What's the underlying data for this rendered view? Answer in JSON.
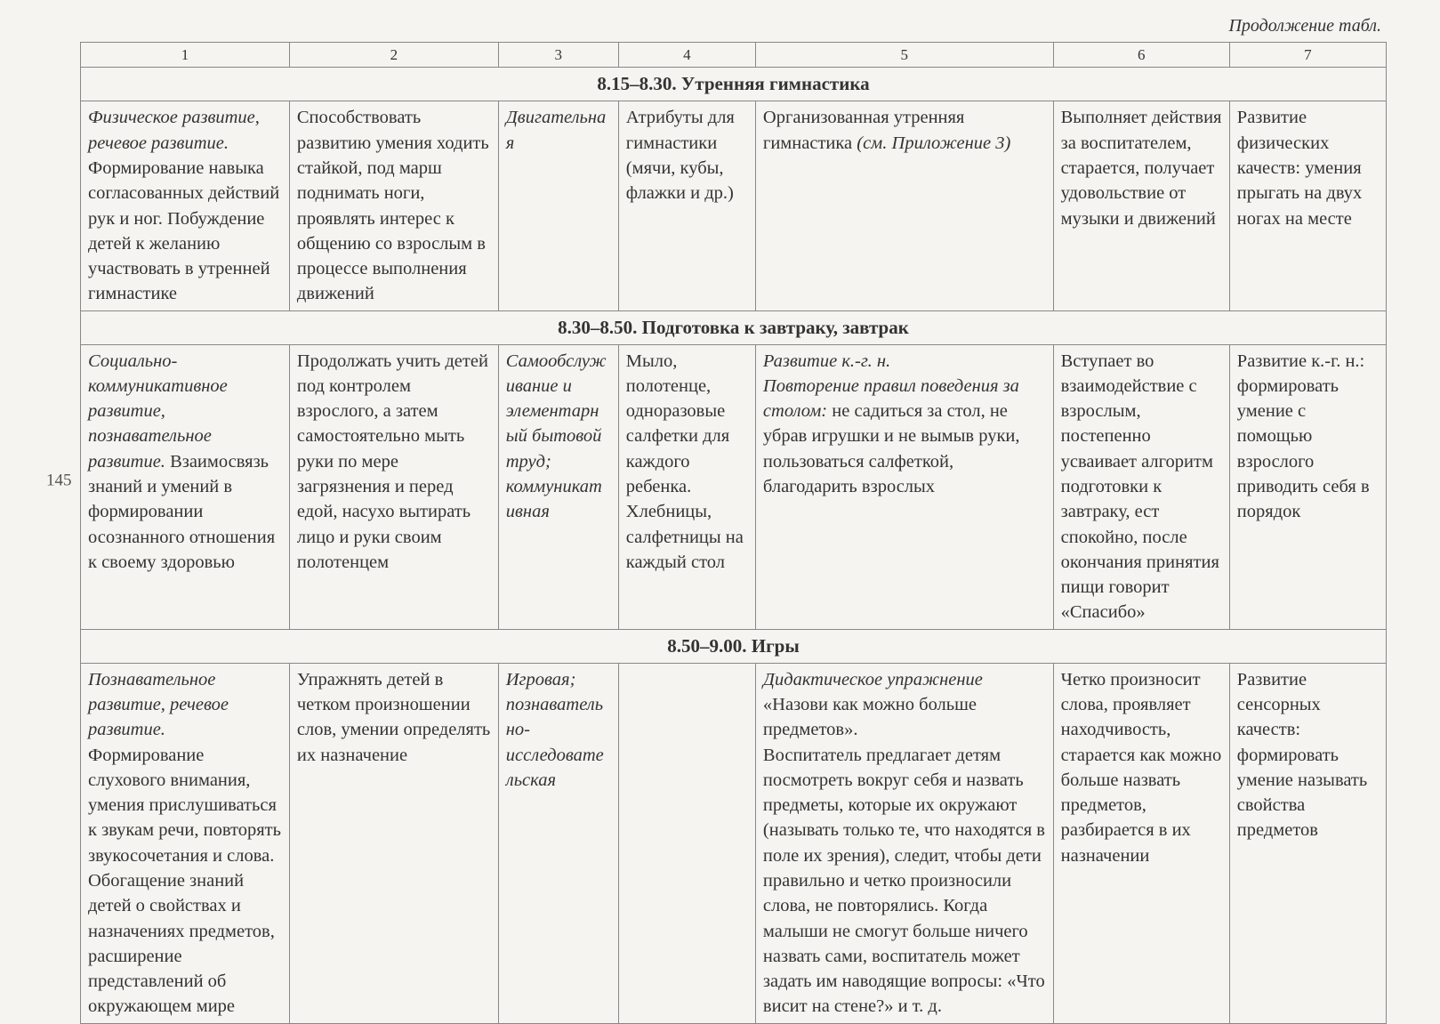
{
  "continuation": "Продолжение табл.",
  "page_number": "145",
  "colors": {
    "background": "#f5f4f0",
    "border": "#888888",
    "text": "#333333"
  },
  "typography": {
    "body_font": "Times New Roman",
    "body_size_pt": 15,
    "header_size_pt": 16
  },
  "columns": {
    "widths_pct": [
      16,
      16,
      9.2,
      10.5,
      22.8,
      13.5,
      12
    ],
    "numbers": [
      "1",
      "2",
      "3",
      "4",
      "5",
      "6",
      "7"
    ]
  },
  "sections": [
    {
      "title": "8.15–8.30. Утренняя гимнастика",
      "rows": [
        {
          "c1_italic": "Физическое развитие, речевое развитие.",
          "c1_rest": " Формирование навыка согласованных действий рук и ног. Побуждение детей к желанию участвовать в утренней гимнастике",
          "c2": "Способствовать развитию умения ходить стайкой, под марш поднимать ноги, проявлять интерес к общению со взрослым в процессе выполнения движений",
          "c3_italic": "Двигательная",
          "c3_rest": "",
          "c4": "Атрибуты для гимнастики (мячи, кубы, флажки и др.)",
          "c5_pre": "Организованная утренняя гимнастика ",
          "c5_italic": "(см. Приложение 3)",
          "c5_rest": "",
          "c6": "Выполняет действия за воспитателем, старается, получает удовольствие от музыки и движений",
          "c7": "Развитие физических качеств: умения прыгать на двух ногах на месте"
        }
      ]
    },
    {
      "title": "8.30–8.50. Подготовка к завтраку, завтрак",
      "rows": [
        {
          "c1_italic": "Социально-коммуникативное развитие, познавательное развитие.",
          "c1_rest": " Взаимосвязь знаний и умений в формировании осознанного отношения к своему здоровью",
          "c2": "Продолжать учить детей под контролем взрослого, а затем самостоятельно мыть руки по мере загрязнения и перед едой, насухо вытирать лицо и руки своим полотенцем",
          "c3_italic": "Самообслуживание и элементарный бытовой труд; коммуникативная",
          "c3_rest": "",
          "c4": "Мыло, полотенце, одноразовые салфетки для каждого ребенка. Хлебницы, салфетницы на каждый стол",
          "c5_pre": "",
          "c5_italic": "Развитие к.-г. н.\nПовторение правил поведения за столом:",
          "c5_rest": " не садиться за стол, не убрав игрушки и не вымыв руки, пользоваться салфеткой, благодарить взрослых",
          "c6": "Вступает во взаимодействие с взрослым, постепенно усваивает алгоритм подготовки к завтраку, ест спокойно, после окончания принятия пищи говорит «Спасибо»",
          "c7": "Развитие к.-г. н.: формировать умение с помощью взрослого приводить себя в порядок"
        }
      ]
    },
    {
      "title": "8.50–9.00. Игры",
      "rows": [
        {
          "c1_italic": "Познавательное развитие, речевое развитие.",
          "c1_rest": " Формирование слухового внимания, умения прислушиваться к звукам речи, повторять звукосочетания и слова. Обогащение знаний детей о свойствах и назначениях предметов, расширение представлений об окружающем мире",
          "c2": "Упражнять детей в четком произношении слов, умении определять их назначение",
          "c3_italic": "Игровая; познавательно-исследовательская",
          "c3_rest": "",
          "c4": "",
          "c5_pre": "",
          "c5_italic": "Дидактическое упражнение",
          "c5_rest": " «Назови как можно больше предметов».\nВоспитатель предлагает детям посмотреть вокруг себя и назвать предметы, которые их окружают (называть только те, что находятся в поле их зрения), следит, чтобы дети правильно и четко произносили слова, не повторялись. Когда малыши не смогут больше ничего назвать сами, воспитатель может задать им наводящие вопросы: «Что висит на стене?» и т. д.",
          "c6": "Четко произносит слова, проявляет находчивость, старается как можно больше назвать предметов, разбирается в их назначении",
          "c7": "Развитие сенсорных качеств: формировать умение называть свойства предметов"
        }
      ]
    }
  ]
}
